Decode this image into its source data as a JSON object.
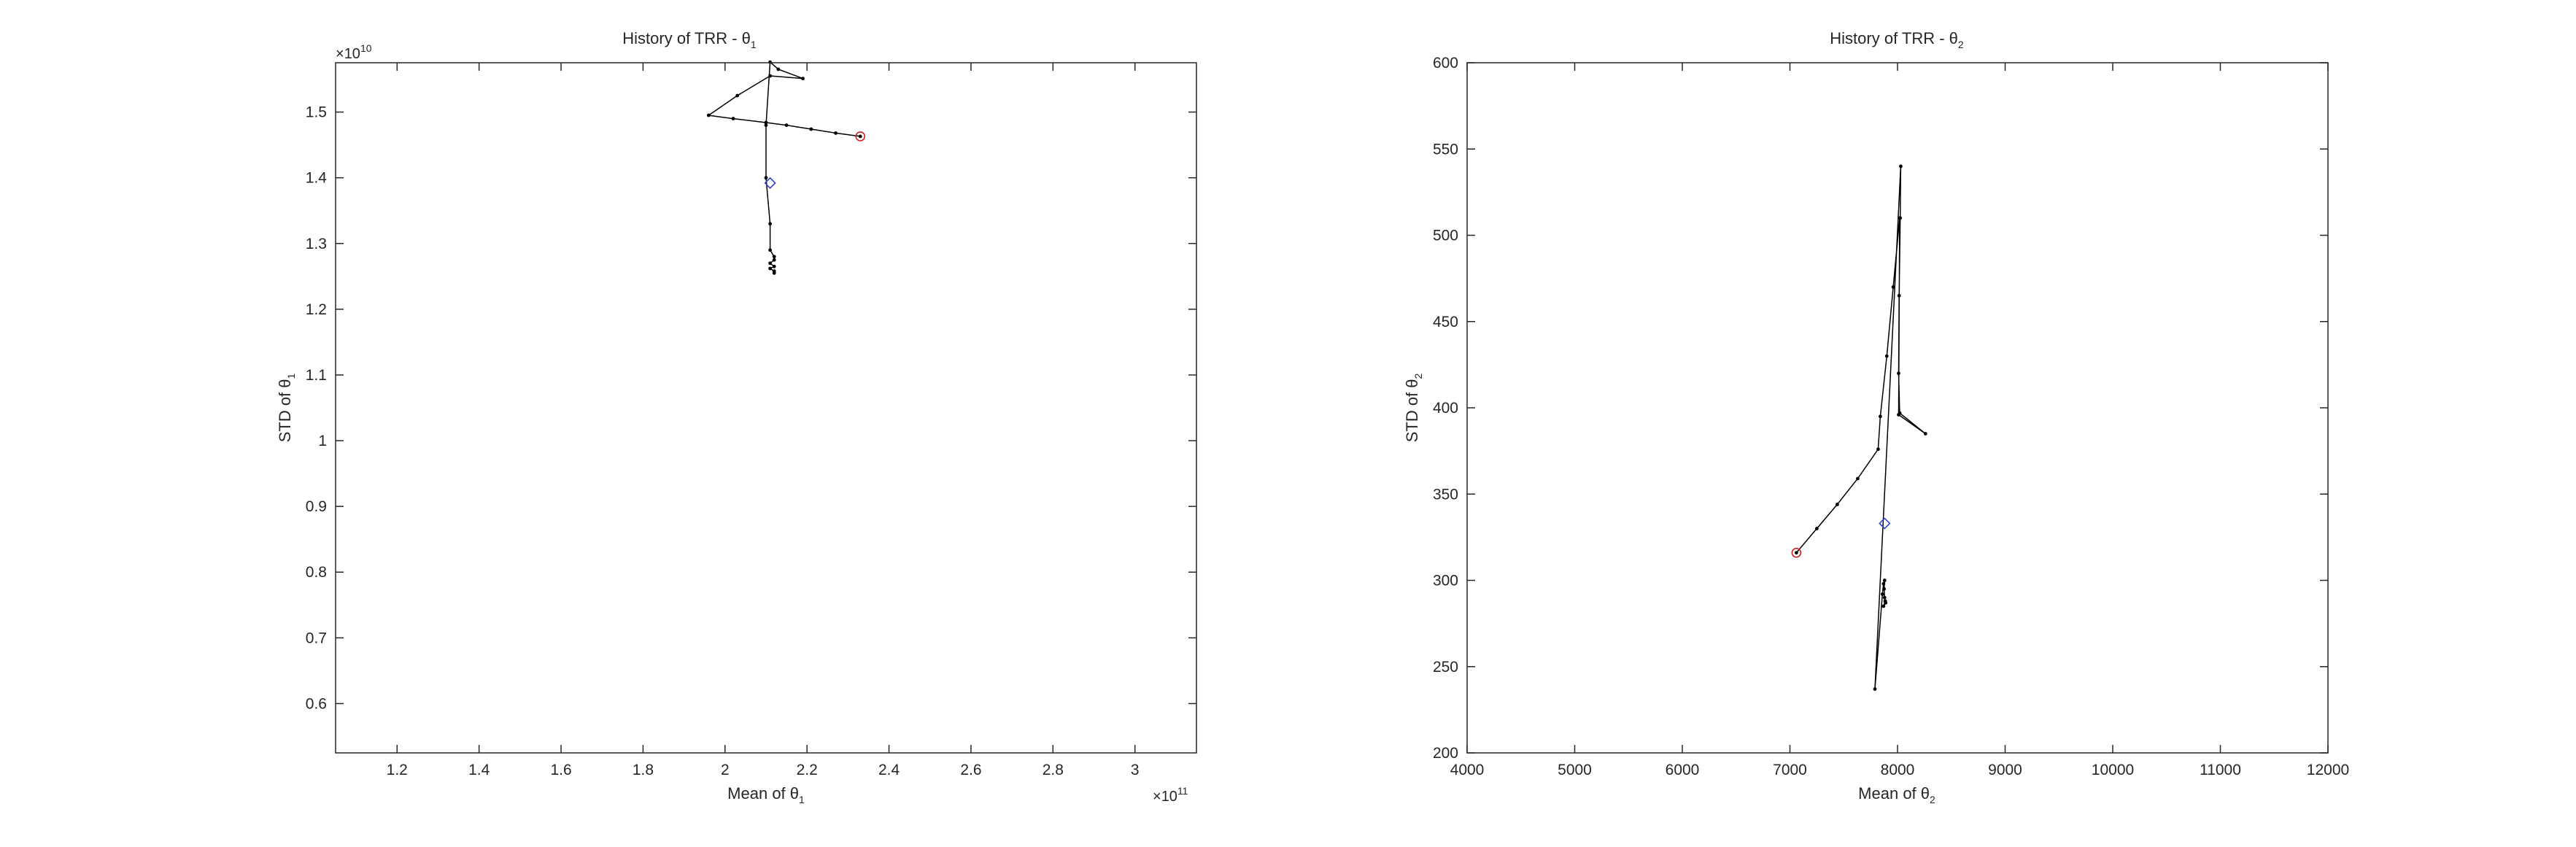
{
  "chart_data": [
    {
      "type": "line",
      "title": "History of TRR - θ",
      "title_sub": "1",
      "xlabel": "Mean of θ",
      "xlabel_sub": "1",
      "ylabel": "STD of θ",
      "ylabel_sub": "1",
      "x_exponent": "10",
      "x_exponent_power": "11",
      "y_exponent": "10",
      "y_exponent_power": "10",
      "xlim": [
        1.05,
        3.15
      ],
      "ylim": [
        0.525,
        1.575
      ],
      "xticks": [
        1.2,
        1.4,
        1.6,
        1.8,
        2,
        2.2,
        2.4,
        2.6,
        2.8,
        3
      ],
      "yticks": [
        0.6,
        0.7,
        0.8,
        0.9,
        1,
        1.1,
        1.2,
        1.3,
        1.4,
        1.5
      ],
      "grid": false,
      "series": [
        {
          "x": [
            2.33,
            2.27,
            2.21,
            2.15,
            2.1,
            2.02,
            1.96,
            2.03,
            2.11,
            2.19,
            2.13,
            2.11,
            2.1,
            2.1,
            2.11,
            2.11,
            2.12,
            2.12,
            2.11,
            2.12,
            2.11,
            2.12,
            2.12
          ],
          "y": [
            1.463,
            1.468,
            1.474,
            1.48,
            1.484,
            1.49,
            1.495,
            1.525,
            1.555,
            1.551,
            1.565,
            1.576,
            1.48,
            1.4,
            1.33,
            1.29,
            1.28,
            1.275,
            1.27,
            1.265,
            1.262,
            1.258,
            1.255
          ]
        }
      ],
      "start_marker": {
        "x": 2.33,
        "y": 1.463
      },
      "mean_marker": {
        "x": 2.11,
        "y": 1.392
      },
      "colors": {
        "line": "#000000",
        "start_marker": "#cc2222",
        "mean_marker": "#3344cc",
        "axis": "#262626"
      }
    },
    {
      "type": "line",
      "title": "History of TRR - θ",
      "title_sub": "2",
      "xlabel": "Mean of θ",
      "xlabel_sub": "2",
      "ylabel": "STD of θ",
      "ylabel_sub": "2",
      "xlim": [
        4000,
        12000
      ],
      "ylim": [
        200,
        600
      ],
      "xticks": [
        4000,
        5000,
        6000,
        7000,
        8000,
        9000,
        10000,
        11000,
        12000
      ],
      "yticks": [
        200,
        250,
        300,
        350,
        400,
        450,
        500,
        550,
        600
      ],
      "grid": false,
      "series": [
        {
          "x": [
            7060,
            7250,
            7440,
            7630,
            7820,
            7840,
            7900,
            7960,
            8020,
            8010,
            8260,
            8020,
            8010,
            8015,
            8025,
            8030,
            7790,
            7860,
            7870,
            7880,
            7875,
            7880,
            7885,
            7870,
            7890
          ],
          "y": [
            316,
            330,
            344,
            359,
            376,
            395,
            430,
            470,
            510,
            396,
            385,
            397,
            420,
            465,
            510,
            540,
            237,
            292,
            298,
            300,
            295,
            290,
            288,
            285,
            287
          ]
        }
      ],
      "start_marker": {
        "x": 7060,
        "y": 316
      },
      "mean_marker": {
        "x": 7880,
        "y": 333
      },
      "colors": {
        "line": "#000000",
        "start_marker": "#cc2222",
        "mean_marker": "#3344cc",
        "axis": "#262626"
      }
    }
  ]
}
